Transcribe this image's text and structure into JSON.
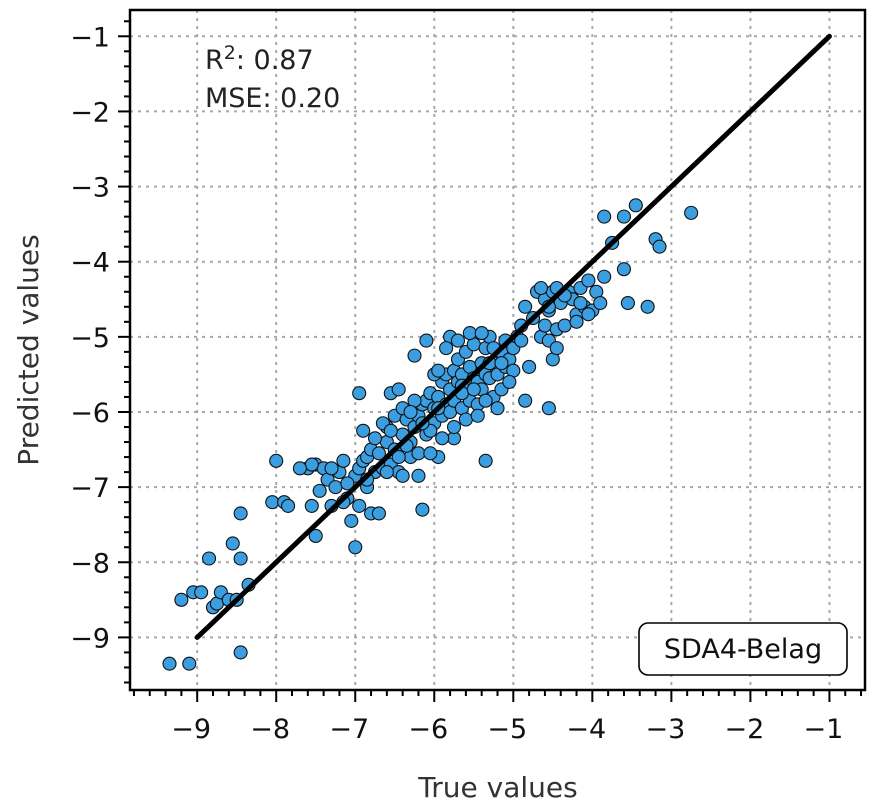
{
  "chart_data": {
    "type": "scatter",
    "xlabel": "True values",
    "ylabel": "Predicted values",
    "xlim": [
      -9.85,
      -0.55
    ],
    "ylim": [
      -9.7,
      -0.65
    ],
    "xticks": [
      -9,
      -8,
      -7,
      -6,
      -5,
      -4,
      -3,
      -2,
      -1
    ],
    "yticks": [
      -9,
      -8,
      -7,
      -6,
      -5,
      -4,
      -3,
      -2,
      -1
    ],
    "grid": true,
    "reference_line": {
      "x": [
        -9,
        -1
      ],
      "y": [
        -9,
        -1
      ]
    },
    "annotations": {
      "r2_label": "R",
      "r2_sup": "2",
      "r2_value": ": 0.87",
      "mse": "MSE: 0.20"
    },
    "dataset_label": "SDA4-Belag",
    "point_color": "#3b9ee0",
    "points": [
      [
        -9.35,
        -9.35
      ],
      [
        -9.1,
        -9.35
      ],
      [
        -9.2,
        -8.5
      ],
      [
        -9.05,
        -8.4
      ],
      [
        -8.95,
        -8.4
      ],
      [
        -8.85,
        -7.95
      ],
      [
        -8.8,
        -8.6
      ],
      [
        -8.75,
        -8.55
      ],
      [
        -8.7,
        -8.4
      ],
      [
        -8.6,
        -8.5
      ],
      [
        -8.55,
        -7.75
      ],
      [
        -8.5,
        -8.5
      ],
      [
        -8.45,
        -7.95
      ],
      [
        -8.45,
        -7.35
      ],
      [
        -8.45,
        -9.2
      ],
      [
        -8.35,
        -8.3
      ],
      [
        -8.0,
        -6.65
      ],
      [
        -8.05,
        -7.2
      ],
      [
        -7.9,
        -7.2
      ],
      [
        -7.85,
        -7.25
      ],
      [
        -7.6,
        -6.75
      ],
      [
        -7.5,
        -6.7
      ],
      [
        -7.55,
        -7.25
      ],
      [
        -7.5,
        -7.65
      ],
      [
        -7.45,
        -7.05
      ],
      [
        -7.4,
        -6.75
      ],
      [
        -7.35,
        -6.9
      ],
      [
        -7.3,
        -7.25
      ],
      [
        -7.25,
        -7.0
      ],
      [
        -7.2,
        -6.8
      ],
      [
        -7.15,
        -6.65
      ],
      [
        -7.1,
        -7.15
      ],
      [
        -7.05,
        -7.45
      ],
      [
        -7.0,
        -6.85
      ],
      [
        -6.95,
        -6.75
      ],
      [
        -6.9,
        -6.65
      ],
      [
        -6.85,
        -6.6
      ],
      [
        -6.8,
        -6.5
      ],
      [
        -6.85,
        -7.0
      ],
      [
        -6.8,
        -7.35
      ],
      [
        -6.75,
        -6.8
      ],
      [
        -6.7,
        -6.55
      ],
      [
        -6.7,
        -7.35
      ],
      [
        -6.65,
        -6.75
      ],
      [
        -6.6,
        -6.4
      ],
      [
        -6.6,
        -6.2
      ],
      [
        -6.55,
        -6.7
      ],
      [
        -6.5,
        -6.5
      ],
      [
        -6.5,
        -6.05
      ],
      [
        -6.45,
        -6.8
      ],
      [
        -6.4,
        -6.3
      ],
      [
        -6.35,
        -6.1
      ],
      [
        -6.3,
        -6.6
      ],
      [
        -6.3,
        -6.4
      ],
      [
        -6.25,
        -6.2
      ],
      [
        -6.2,
        -6.05
      ],
      [
        -6.2,
        -6.55
      ],
      [
        -6.15,
        -5.9
      ],
      [
        -6.1,
        -5.85
      ],
      [
        -6.1,
        -6.3
      ],
      [
        -6.05,
        -5.75
      ],
      [
        -6.0,
        -6.15
      ],
      [
        -6.0,
        -5.95
      ],
      [
        -5.95,
        -5.8
      ],
      [
        -5.9,
        -5.6
      ],
      [
        -5.9,
        -6.05
      ],
      [
        -5.85,
        -5.5
      ],
      [
        -5.85,
        -5.9
      ],
      [
        -5.8,
        -5.7
      ],
      [
        -5.8,
        -6.0
      ],
      [
        -5.75,
        -5.45
      ],
      [
        -5.75,
        -5.85
      ],
      [
        -5.7,
        -5.6
      ],
      [
        -5.7,
        -5.3
      ],
      [
        -5.65,
        -5.5
      ],
      [
        -5.65,
        -5.95
      ],
      [
        -5.6,
        -5.2
      ],
      [
        -5.6,
        -5.75
      ],
      [
        -5.55,
        -5.4
      ],
      [
        -5.55,
        -5.85
      ],
      [
        -5.5,
        -5.55
      ],
      [
        -5.5,
        -5.1
      ],
      [
        -5.45,
        -5.6
      ],
      [
        -5.45,
        -5.9
      ],
      [
        -5.4,
        -5.35
      ],
      [
        -5.4,
        -5.7
      ],
      [
        -5.35,
        -5.5
      ],
      [
        -5.35,
        -5.15
      ],
      [
        -5.3,
        -5.0
      ],
      [
        -5.3,
        -5.55
      ],
      [
        -5.25,
        -5.35
      ],
      [
        -5.25,
        -5.8
      ],
      [
        -5.2,
        -5.5
      ],
      [
        -5.2,
        -5.95
      ],
      [
        -5.15,
        -5.2
      ],
      [
        -5.1,
        -5.4
      ],
      [
        -5.1,
        -5.05
      ],
      [
        -5.05,
        -5.3
      ],
      [
        -5.0,
        -5.15
      ],
      [
        -5.0,
        -5.45
      ],
      [
        -4.95,
        -5.0
      ],
      [
        -4.9,
        -4.85
      ],
      [
        -4.85,
        -4.6
      ],
      [
        -4.8,
        -5.4
      ],
      [
        -4.75,
        -4.75
      ],
      [
        -4.7,
        -4.4
      ],
      [
        -4.65,
        -5.0
      ],
      [
        -4.6,
        -4.5
      ],
      [
        -4.6,
        -4.85
      ],
      [
        -4.55,
        -4.65
      ],
      [
        -4.55,
        -5.05
      ],
      [
        -4.5,
        -4.4
      ],
      [
        -4.5,
        -5.3
      ],
      [
        -4.45,
        -4.9
      ],
      [
        -4.4,
        -4.55
      ],
      [
        -4.35,
        -4.85
      ],
      [
        -4.3,
        -4.4
      ],
      [
        -4.25,
        -4.5
      ],
      [
        -4.2,
        -4.7
      ],
      [
        -4.15,
        -4.35
      ],
      [
        -4.1,
        -4.6
      ],
      [
        -4.05,
        -4.25
      ],
      [
        -4.0,
        -4.65
      ],
      [
        -3.95,
        -4.4
      ],
      [
        -3.9,
        -4.55
      ],
      [
        -3.85,
        -3.4
      ],
      [
        -3.75,
        -3.75
      ],
      [
        -3.6,
        -3.4
      ],
      [
        -3.6,
        -4.1
      ],
      [
        -3.55,
        -4.55
      ],
      [
        -3.45,
        -3.25
      ],
      [
        -3.3,
        -4.6
      ],
      [
        -3.2,
        -3.7
      ],
      [
        -3.15,
        -3.8
      ],
      [
        -2.75,
        -3.35
      ],
      [
        -4.55,
        -5.95
      ],
      [
        -4.85,
        -5.85
      ],
      [
        -5.35,
        -6.65
      ],
      [
        -5.75,
        -6.35
      ],
      [
        -5.95,
        -6.6
      ],
      [
        -6.15,
        -7.3
      ],
      [
        -6.35,
        -6.45
      ],
      [
        -6.75,
        -6.35
      ],
      [
        -6.95,
        -5.75
      ],
      [
        -7.0,
        -7.8
      ],
      [
        -7.55,
        -6.7
      ],
      [
        -6.55,
        -5.75
      ],
      [
        -6.25,
        -5.25
      ],
      [
        -6.1,
        -5.05
      ],
      [
        -6.0,
        -5.5
      ],
      [
        -5.8,
        -5.0
      ],
      [
        -5.7,
        -5.05
      ],
      [
        -5.55,
        -4.95
      ],
      [
        -5.4,
        -4.95
      ],
      [
        -5.25,
        -5.15
      ],
      [
        -4.65,
        -4.35
      ],
      [
        -4.45,
        -4.35
      ],
      [
        -4.2,
        -4.8
      ],
      [
        -4.05,
        -4.7
      ],
      [
        -4.45,
        -5.15
      ],
      [
        -6.45,
        -5.7
      ],
      [
        -6.25,
        -5.85
      ],
      [
        -5.95,
        -5.45
      ],
      [
        -5.85,
        -5.15
      ],
      [
        -5.65,
        -5.65
      ],
      [
        -5.35,
        -5.85
      ],
      [
        -5.15,
        -5.7
      ],
      [
        -5.05,
        -5.6
      ],
      [
        -6.65,
        -6.15
      ],
      [
        -6.55,
        -6.25
      ],
      [
        -6.4,
        -5.95
      ],
      [
        -6.05,
        -6.25
      ],
      [
        -5.9,
        -6.35
      ],
      [
        -5.75,
        -6.2
      ],
      [
        -5.6,
        -6.1
      ],
      [
        -5.45,
        -6.05
      ],
      [
        -6.9,
        -6.25
      ],
      [
        -7.1,
        -6.95
      ],
      [
        -7.3,
        -6.75
      ],
      [
        -6.6,
        -6.8
      ],
      [
        -6.4,
        -6.85
      ],
      [
        -6.2,
        -6.85
      ],
      [
        -6.05,
        -6.55
      ],
      [
        -7.7,
        -6.75
      ],
      [
        -7.15,
        -7.2
      ],
      [
        -6.95,
        -7.25
      ],
      [
        -6.85,
        -6.9
      ],
      [
        -6.45,
        -6.6
      ],
      [
        -6.3,
        -6.0
      ],
      [
        -6.15,
        -6.15
      ],
      [
        -5.95,
        -5.95
      ],
      [
        -5.65,
        -5.75
      ],
      [
        -5.5,
        -5.7
      ],
      [
        -5.3,
        -5.35
      ],
      [
        -5.15,
        -5.35
      ],
      [
        -4.9,
        -5.05
      ],
      [
        -4.55,
        -4.6
      ],
      [
        -4.35,
        -4.45
      ],
      [
        -4.15,
        -4.55
      ],
      [
        -3.85,
        -4.2
      ]
    ]
  }
}
